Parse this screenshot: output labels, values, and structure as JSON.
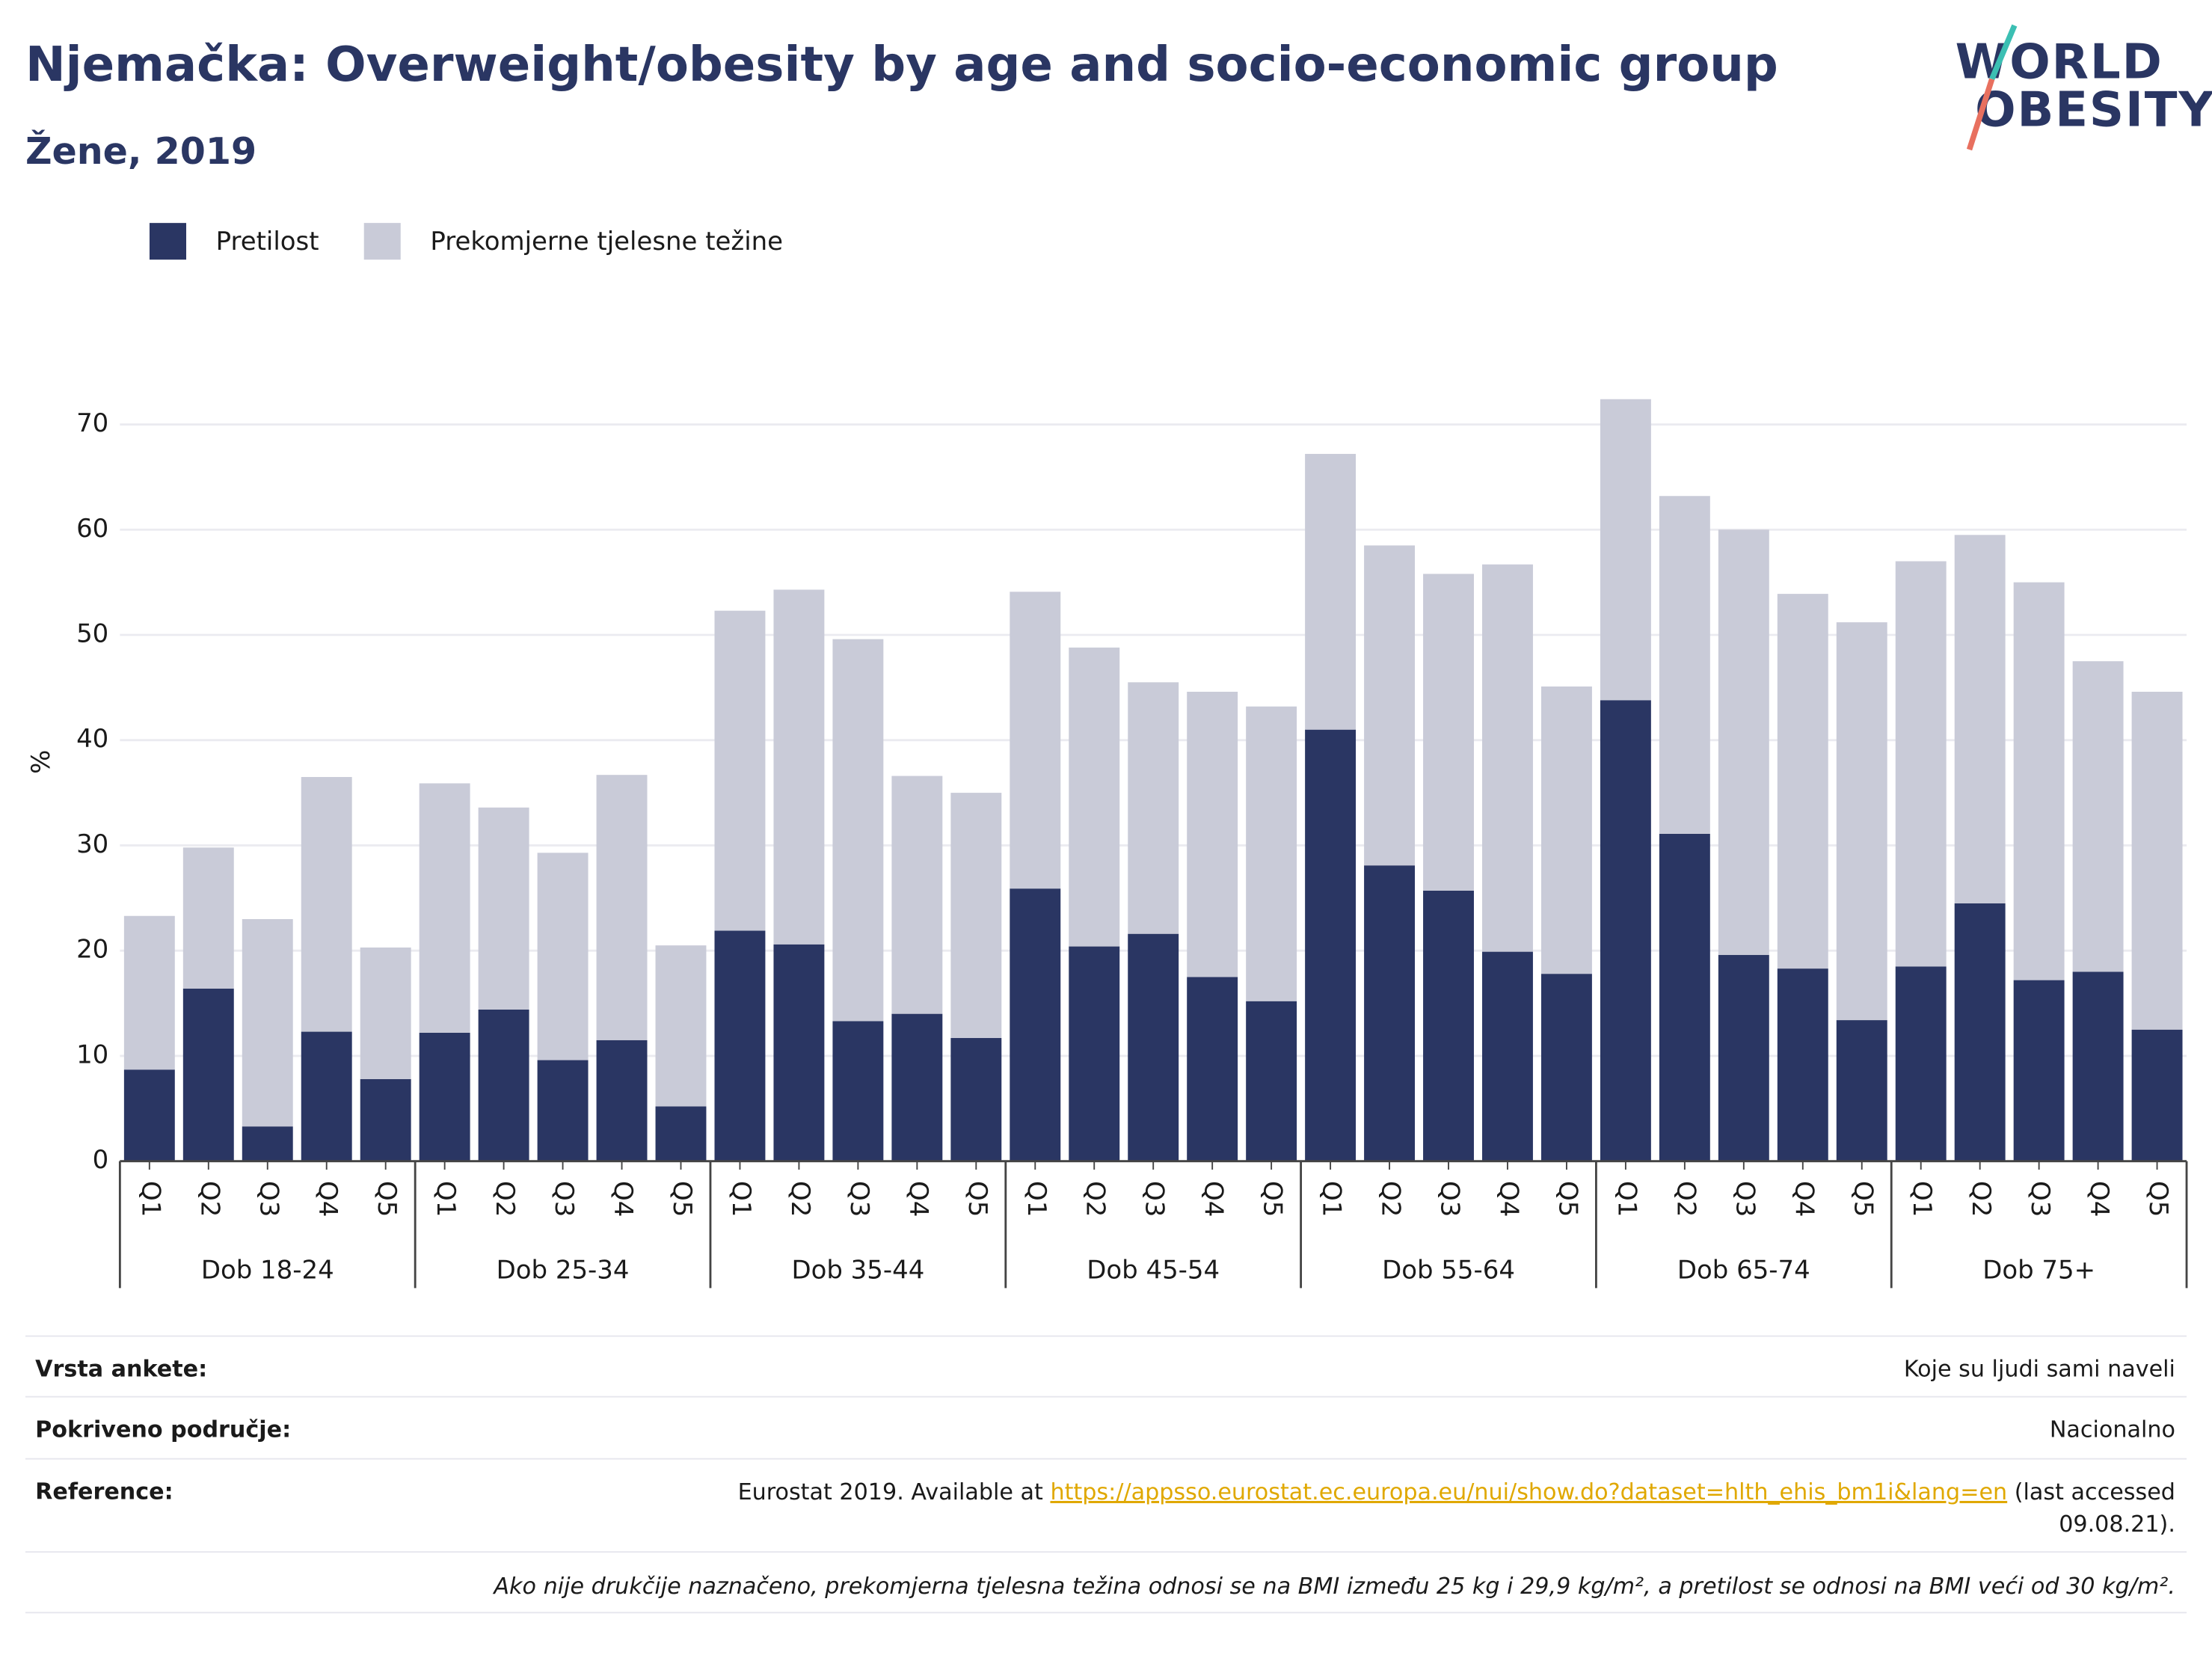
{
  "chart_data": {
    "type": "stacked_bar",
    "title": "Njemačka: Overweight/obesity by age and socio-economic group",
    "subtitle": "Žene, 2019",
    "ylabel": "%",
    "ylim": [
      0,
      75
    ],
    "yticks": [
      0,
      10,
      20,
      30,
      40,
      50,
      60,
      70
    ],
    "grid": true,
    "legend": "top-left",
    "groups": [
      {
        "name": "Dob 18-24",
        "categories": [
          "Q1",
          "Q2",
          "Q3",
          "Q4",
          "Q5"
        ]
      },
      {
        "name": "Dob 25-34",
        "categories": [
          "Q1",
          "Q2",
          "Q3",
          "Q4",
          "Q5"
        ]
      },
      {
        "name": "Dob 35-44",
        "categories": [
          "Q1",
          "Q2",
          "Q3",
          "Q4",
          "Q5"
        ]
      },
      {
        "name": "Dob 45-54",
        "categories": [
          "Q1",
          "Q2",
          "Q3",
          "Q4",
          "Q5"
        ]
      },
      {
        "name": "Dob 55-64",
        "categories": [
          "Q1",
          "Q2",
          "Q3",
          "Q4",
          "Q5"
        ]
      },
      {
        "name": "Dob 65-74",
        "categories": [
          "Q1",
          "Q2",
          "Q3",
          "Q4",
          "Q5"
        ]
      },
      {
        "name": "Dob 75+",
        "categories": [
          "Q1",
          "Q2",
          "Q3",
          "Q4",
          "Q5"
        ]
      }
    ],
    "series": [
      {
        "name": "Pretilost",
        "color": "#2a3663",
        "values": [
          8.7,
          16.4,
          3.3,
          12.3,
          7.8,
          12.2,
          14.4,
          9.6,
          11.5,
          5.2,
          21.9,
          20.6,
          13.3,
          14.0,
          11.7,
          25.9,
          20.4,
          21.6,
          17.5,
          15.2,
          41.0,
          28.1,
          25.7,
          19.9,
          17.8,
          43.8,
          31.1,
          19.6,
          18.3,
          13.4,
          18.5,
          24.5,
          17.2,
          18.0,
          12.5
        ]
      },
      {
        "name": "Prekomjerne tjelesne težine",
        "color": "#c9cbd8",
        "values": [
          14.6,
          13.4,
          19.7,
          24.2,
          12.5,
          23.7,
          19.2,
          19.7,
          25.2,
          15.3,
          30.4,
          33.7,
          36.3,
          22.6,
          23.3,
          28.2,
          28.4,
          23.9,
          27.1,
          28.0,
          26.2,
          30.4,
          30.1,
          36.8,
          27.3,
          28.6,
          32.1,
          40.4,
          35.6,
          37.8,
          38.5,
          35.0,
          37.8,
          29.5,
          32.1
        ]
      }
    ]
  },
  "logo": [
    "WORLD",
    "OBESITY"
  ],
  "footer": {
    "rows": [
      {
        "label": "Vrsta ankete:",
        "value": "Koje su ljudi sami naveli"
      },
      {
        "label": "Pokriveno područje:",
        "value": "Nacionalno"
      }
    ],
    "reference": {
      "label": "Reference:",
      "text": "Eurostat 2019. Available at",
      "link": "https://appsso.eurostat.ec.europa.eu/nui/show.do?dataset=hlth_ehis_bm1i&lang=en",
      "after": "(last accessed",
      "after2": "09.08.21)."
    },
    "note": "Ako nije drukčije naznačeno, prekomjerna tjelesna težina odnosi se na BMI između 25 kg i 29,9 kg/m², a pretilost se odnosi na BMI veći od 30 kg/m²."
  }
}
